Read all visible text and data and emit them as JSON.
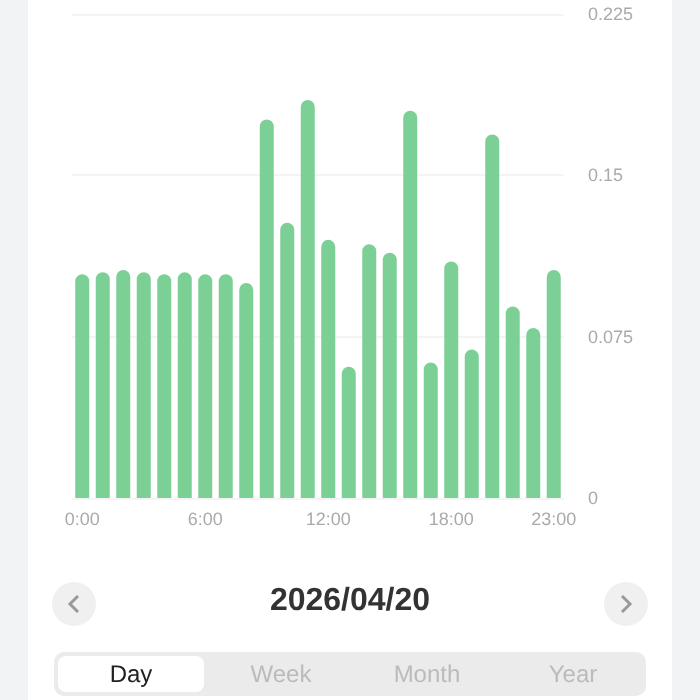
{
  "chart_data": {
    "type": "bar",
    "categories": [
      "0:00",
      null,
      null,
      null,
      null,
      null,
      "6:00",
      null,
      null,
      null,
      null,
      null,
      "12:00",
      null,
      null,
      null,
      null,
      null,
      "18:00",
      null,
      null,
      null,
      null,
      "23:00"
    ],
    "values": [
      0.104,
      0.105,
      0.106,
      0.105,
      0.104,
      0.105,
      0.104,
      0.104,
      0.1,
      0.176,
      0.128,
      0.185,
      0.12,
      0.061,
      0.118,
      0.114,
      0.18,
      0.063,
      0.11,
      0.069,
      0.169,
      0.089,
      0.079,
      0.106
    ],
    "color": "#7dd095",
    "ylim": [
      0,
      0.225
    ],
    "yticks": [
      0,
      0.075,
      0.15,
      0.225
    ],
    "grid": "y",
    "annotations": [
      "2026/04/20",
      "Day",
      "Week",
      "Month",
      "Year"
    ]
  }
}
